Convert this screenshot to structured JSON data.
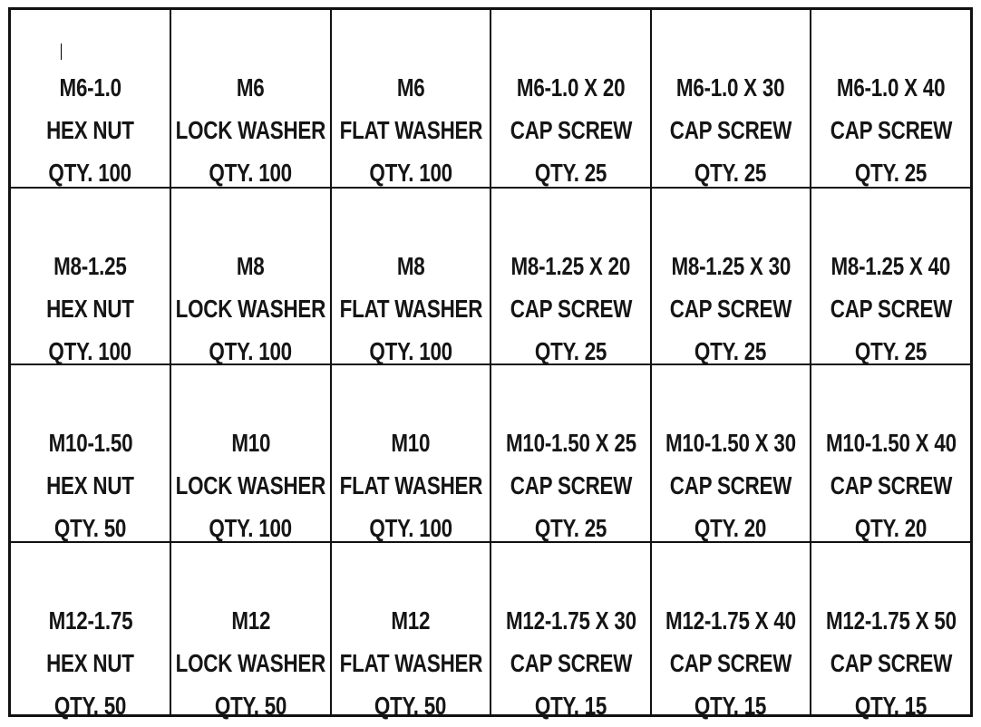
{
  "rows": [
    [
      {
        "size": "M6-1.0",
        "type": "HEX NUT",
        "qty": "QTY. 100"
      },
      {
        "size": "M6",
        "type": "LOCK WASHER",
        "qty": "QTY. 100"
      },
      {
        "size": "M6",
        "type": "FLAT WASHER",
        "qty": "QTY. 100"
      },
      {
        "size": "M6-1.0 X 20",
        "type": "CAP SCREW",
        "qty": "QTY. 25"
      },
      {
        "size": "M6-1.0 X 30",
        "type": "CAP SCREW",
        "qty": "QTY. 25"
      },
      {
        "size": "M6-1.0 X 40",
        "type": "CAP SCREW",
        "qty": "QTY. 25"
      }
    ],
    [
      {
        "size": "M8-1.25",
        "type": "HEX NUT",
        "qty": "QTY. 100"
      },
      {
        "size": "M8",
        "type": "LOCK WASHER",
        "qty": "QTY. 100"
      },
      {
        "size": "M8",
        "type": "FLAT WASHER",
        "qty": "QTY. 100"
      },
      {
        "size": "M8-1.25 X 20",
        "type": "CAP SCREW",
        "qty": "QTY. 25"
      },
      {
        "size": "M8-1.25 X 30",
        "type": "CAP SCREW",
        "qty": "QTY. 25"
      },
      {
        "size": "M8-1.25 X 40",
        "type": "CAP SCREW",
        "qty": "QTY. 25"
      }
    ],
    [
      {
        "size": "M10-1.50",
        "type": "HEX NUT",
        "qty": "QTY. 50"
      },
      {
        "size": "M10",
        "type": "LOCK WASHER",
        "qty": "QTY. 100"
      },
      {
        "size": "M10",
        "type": "FLAT WASHER",
        "qty": "QTY. 100"
      },
      {
        "size": "M10-1.50 X 25",
        "type": "CAP SCREW",
        "qty": "QTY. 25"
      },
      {
        "size": "M10-1.50 X 30",
        "type": "CAP SCREW",
        "qty": "QTY. 20"
      },
      {
        "size": "M10-1.50 X 40",
        "type": "CAP SCREW",
        "qty": "QTY. 20"
      }
    ],
    [
      {
        "size": "M12-1.75",
        "type": "HEX NUT",
        "qty": "QTY. 50"
      },
      {
        "size": "M12",
        "type": "LOCK WASHER",
        "qty": "QTY. 50"
      },
      {
        "size": "M12",
        "type": "FLAT WASHER",
        "qty": "QTY. 50"
      },
      {
        "size": "M12-1.75 X 30",
        "type": "CAP SCREW",
        "qty": "QTY. 15"
      },
      {
        "size": "M12-1.75 X 40",
        "type": "CAP SCREW",
        "qty": "QTY. 15"
      },
      {
        "size": "M12-1.75 X 50",
        "type": "CAP SCREW",
        "qty": "QTY. 15"
      }
    ]
  ]
}
